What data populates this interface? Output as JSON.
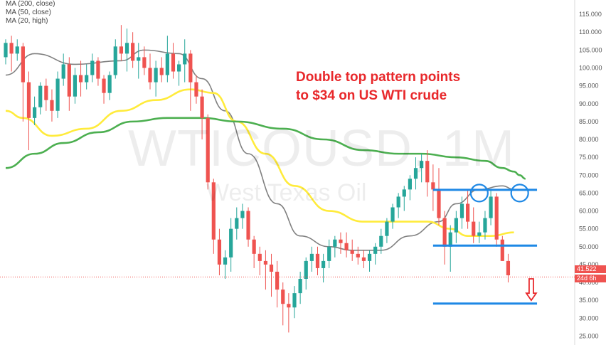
{
  "legend": [
    {
      "label": "MA (200, close)"
    },
    {
      "label": "MA (50, close)"
    },
    {
      "label": "MA (20, high)"
    }
  ],
  "annotation": {
    "line1": "Double top pattern points",
    "line2": "to $34 on US WTI crude"
  },
  "watermark": {
    "symbol": "WTICOUSD, 1M",
    "name": "West Texas Oil"
  },
  "price_tag": {
    "price": "41.522",
    "countdown": "24d 6h"
  },
  "colors": {
    "up": "#26a69a",
    "down": "#ef5350",
    "ma20": "#808080",
    "ma50": "#ffeb3b",
    "ma200": "#4caf50",
    "level_lines": "#1e88e5",
    "annotation": "#e8282b",
    "circles": "#1e88e5",
    "arrow": "#e8282b"
  },
  "chart_data": {
    "type": "candlestick",
    "y_ticks": [
      25,
      30,
      35,
      40,
      45,
      50,
      55,
      60,
      65,
      70,
      75,
      80,
      85,
      90,
      95,
      100,
      105,
      110,
      115
    ],
    "y_tick_labels": [
      "25.000",
      "30.000",
      "35.000",
      "40.000",
      "45.000",
      "50.000",
      "55.000",
      "60.000",
      "65.000",
      "70.000",
      "75.000",
      "80.000",
      "85.000",
      "90.000",
      "95.000",
      "100.000",
      "105.000",
      "110.000",
      "115.000"
    ],
    "ylim": [
      22.5,
      119
    ],
    "candles": [
      [
        103,
        108,
        101,
        107
      ],
      [
        107,
        109,
        99,
        104
      ],
      [
        104,
        108,
        102,
        106
      ],
      [
        106,
        107,
        85,
        96
      ],
      [
        96,
        99,
        77,
        86
      ],
      [
        86,
        92,
        84,
        89
      ],
      [
        89,
        96,
        87,
        95
      ],
      [
        95,
        97,
        88,
        91
      ],
      [
        91,
        94,
        85,
        88
      ],
      [
        88,
        99,
        86,
        97
      ],
      [
        97,
        104,
        95,
        101
      ],
      [
        101,
        103,
        88,
        92
      ],
      [
        92,
        100,
        90,
        98
      ],
      [
        98,
        102,
        92,
        96
      ],
      [
        96,
        101,
        94,
        98
      ],
      [
        98,
        104,
        96,
        102
      ],
      [
        102,
        103,
        95,
        97
      ],
      [
        97,
        98,
        90,
        93
      ],
      [
        93,
        99,
        91,
        98
      ],
      [
        98,
        108,
        97,
        106
      ],
      [
        106,
        112,
        102,
        104
      ],
      [
        104,
        111,
        99,
        107
      ],
      [
        107,
        110,
        100,
        102
      ],
      [
        102,
        107,
        97,
        103
      ],
      [
        103,
        106,
        98,
        100
      ],
      [
        100,
        104,
        94,
        96
      ],
      [
        96,
        102,
        92,
        100
      ],
      [
        100,
        103,
        96,
        98
      ],
      [
        98,
        109,
        96,
        104
      ],
      [
        104,
        107,
        97,
        99
      ],
      [
        99,
        102,
        95,
        101
      ],
      [
        101,
        108,
        96,
        104
      ],
      [
        104,
        105,
        88,
        96
      ],
      [
        96,
        98,
        90,
        92
      ],
      [
        92,
        94,
        80,
        86
      ],
      [
        86,
        87,
        66,
        68
      ],
      [
        68,
        69,
        48,
        52
      ],
      [
        52,
        55,
        42,
        45
      ],
      [
        45,
        49,
        41,
        47
      ],
      [
        47,
        58,
        43,
        55
      ],
      [
        55,
        61,
        52,
        58
      ],
      [
        58,
        62,
        55,
        60
      ],
      [
        60,
        61,
        50,
        52
      ],
      [
        52,
        53,
        44,
        48
      ],
      [
        48,
        50,
        42,
        46
      ],
      [
        46,
        49,
        38,
        45
      ],
      [
        45,
        48,
        36,
        43
      ],
      [
        43,
        46,
        33,
        38
      ],
      [
        38,
        40,
        28,
        34
      ],
      [
        34,
        37,
        26,
        33
      ],
      [
        33,
        39,
        30,
        37
      ],
      [
        37,
        43,
        34,
        41
      ],
      [
        41,
        47,
        38,
        46
      ],
      [
        46,
        50,
        43,
        48
      ],
      [
        48,
        50,
        42,
        44
      ],
      [
        44,
        48,
        40,
        46
      ],
      [
        46,
        52,
        44,
        50
      ],
      [
        50,
        53,
        47,
        52
      ],
      [
        52,
        54,
        48,
        51
      ],
      [
        51,
        54,
        47,
        49
      ],
      [
        49,
        52,
        46,
        48
      ],
      [
        48,
        50,
        45,
        47
      ],
      [
        47,
        49,
        44,
        46
      ],
      [
        46,
        49,
        43,
        48
      ],
      [
        48,
        51,
        45,
        50
      ],
      [
        50,
        55,
        48,
        53
      ],
      [
        53,
        58,
        51,
        57
      ],
      [
        57,
        62,
        55,
        61
      ],
      [
        61,
        65,
        58,
        64
      ],
      [
        64,
        67,
        60,
        66
      ],
      [
        66,
        70,
        63,
        69
      ],
      [
        69,
        75,
        66,
        72
      ],
      [
        72,
        76,
        68,
        74
      ],
      [
        74,
        77,
        64,
        68
      ],
      [
        68,
        73,
        60,
        66
      ],
      [
        66,
        72,
        56,
        58
      ],
      [
        58,
        60,
        45,
        50
      ],
      [
        50,
        56,
        43,
        54
      ],
      [
        54,
        60,
        51,
        58
      ],
      [
        58,
        64,
        55,
        62
      ],
      [
        62,
        66,
        55,
        57
      ],
      [
        57,
        61,
        51,
        53
      ],
      [
        53,
        57,
        51,
        54
      ],
      [
        54,
        60,
        52,
        58
      ],
      [
        58,
        66,
        56,
        64
      ],
      [
        64,
        65,
        50,
        52
      ],
      [
        52,
        53,
        46,
        46
      ],
      [
        46,
        48,
        40,
        42
      ]
    ],
    "series": [
      {
        "name": "MA (20, high)",
        "values": [
          {
            "i": 0,
            "v": 98
          },
          {
            "i": 5,
            "v": 104
          },
          {
            "i": 12,
            "v": 101
          },
          {
            "i": 20,
            "v": 102
          },
          {
            "i": 24,
            "v": 105
          },
          {
            "i": 30,
            "v": 104
          },
          {
            "i": 34,
            "v": 97
          },
          {
            "i": 38,
            "v": 88
          },
          {
            "i": 42,
            "v": 76
          },
          {
            "i": 47,
            "v": 62
          },
          {
            "i": 51,
            "v": 53
          },
          {
            "i": 56,
            "v": 50
          },
          {
            "i": 60,
            "v": 49
          },
          {
            "i": 65,
            "v": 49
          },
          {
            "i": 70,
            "v": 53
          },
          {
            "i": 75,
            "v": 57
          },
          {
            "i": 78,
            "v": 62
          },
          {
            "i": 82,
            "v": 66
          },
          {
            "i": 86,
            "v": 67
          },
          {
            "i": 88,
            "v": 66
          }
        ]
      },
      {
        "name": "MA (50, close)",
        "values": [
          {
            "i": 0,
            "v": 88
          },
          {
            "i": 3,
            "v": 86
          },
          {
            "i": 8,
            "v": 81
          },
          {
            "i": 14,
            "v": 83
          },
          {
            "i": 20,
            "v": 88
          },
          {
            "i": 26,
            "v": 91
          },
          {
            "i": 32,
            "v": 94
          },
          {
            "i": 36,
            "v": 93
          },
          {
            "i": 40,
            "v": 85
          },
          {
            "i": 45,
            "v": 76
          },
          {
            "i": 50,
            "v": 67
          },
          {
            "i": 56,
            "v": 60
          },
          {
            "i": 62,
            "v": 57
          },
          {
            "i": 68,
            "v": 57
          },
          {
            "i": 73,
            "v": 57
          },
          {
            "i": 77,
            "v": 55
          },
          {
            "i": 80,
            "v": 53
          },
          {
            "i": 84,
            "v": 53
          },
          {
            "i": 88,
            "v": 54
          }
        ]
      },
      {
        "name": "MA (200, close)",
        "values": [
          {
            "i": 0,
            "v": 72
          },
          {
            "i": 5,
            "v": 76
          },
          {
            "i": 10,
            "v": 79
          },
          {
            "i": 16,
            "v": 82
          },
          {
            "i": 22,
            "v": 85
          },
          {
            "i": 28,
            "v": 86
          },
          {
            "i": 34,
            "v": 86
          },
          {
            "i": 40,
            "v": 85
          },
          {
            "i": 48,
            "v": 83
          },
          {
            "i": 55,
            "v": 80
          },
          {
            "i": 62,
            "v": 77
          },
          {
            "i": 68,
            "v": 76
          },
          {
            "i": 72,
            "v": 76
          },
          {
            "i": 78,
            "v": 75
          },
          {
            "i": 83,
            "v": 74
          },
          {
            "i": 86,
            "v": 72
          },
          {
            "i": 88,
            "v": 71
          },
          {
            "i": 89,
            "v": 70
          },
          {
            "i": 90,
            "v": 69
          }
        ]
      }
    ],
    "levels": [
      {
        "value": 65.9,
        "from_i": 74,
        "to_i": 92
      },
      {
        "value": 50.3,
        "from_i": 74,
        "to_i": 92
      },
      {
        "value": 34.1,
        "from_i": 74,
        "to_i": 92
      }
    ],
    "circles": [
      {
        "i": 82,
        "v": 65
      },
      {
        "i": 89,
        "v": 65
      }
    ],
    "arrow": {
      "i": 91,
      "from": 41,
      "to": 35
    },
    "last_price": 41.522
  }
}
